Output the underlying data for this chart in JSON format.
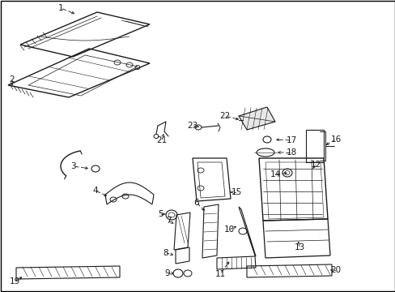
{
  "bg_color": "#ffffff",
  "line_color": "#1a1a1a",
  "figsize": [
    4.89,
    3.6
  ],
  "dpi": 100,
  "border_color": "#000000"
}
